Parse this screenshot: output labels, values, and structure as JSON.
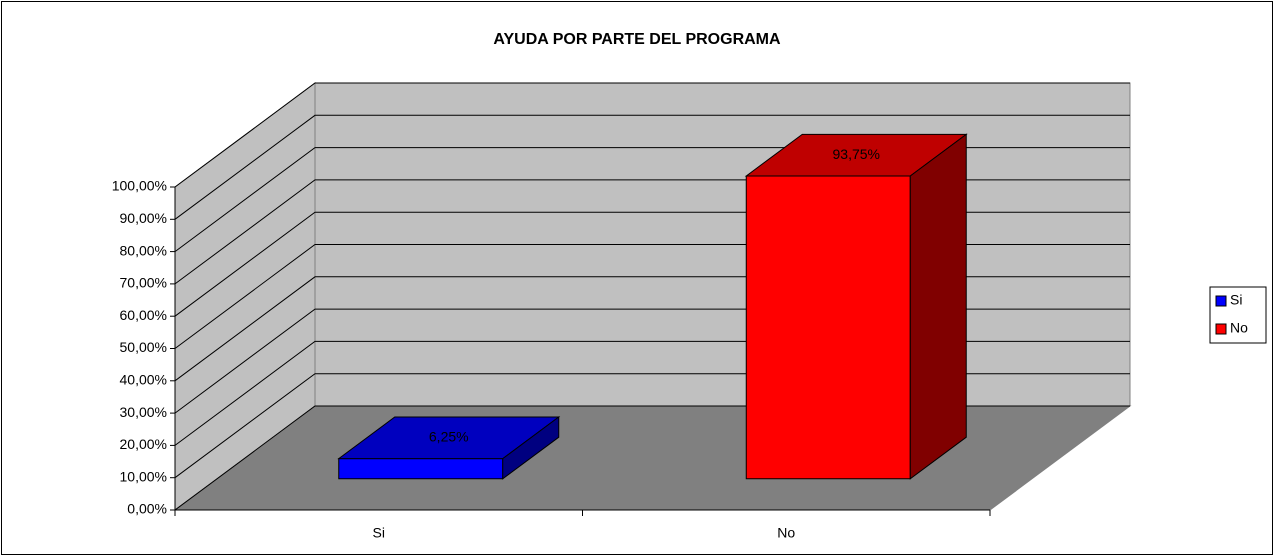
{
  "chart_data": {
    "type": "bar3d",
    "title": "AYUDA POR PARTE DEL PROGRAMA",
    "categories": [
      "Si",
      "No"
    ],
    "values": [
      6.25,
      93.75
    ],
    "value_labels": [
      "6,25%",
      "93,75%"
    ],
    "colors": [
      "#0000ff",
      "#ff0000"
    ],
    "ylim": [
      0,
      100
    ],
    "yticks": [
      {
        "value": 0,
        "label": "0,00%"
      },
      {
        "value": 10,
        "label": "10,00%"
      },
      {
        "value": 20,
        "label": "20,00%"
      },
      {
        "value": 30,
        "label": "30,00%"
      },
      {
        "value": 40,
        "label": "40,00%"
      },
      {
        "value": 50,
        "label": "50,00%"
      },
      {
        "value": 60,
        "label": "60,00%"
      },
      {
        "value": 70,
        "label": "70,00%"
      },
      {
        "value": 80,
        "label": "80,00%"
      },
      {
        "value": 90,
        "label": "90,00%"
      },
      {
        "value": 100,
        "label": "100,00%"
      }
    ],
    "grid": true,
    "legend": "right"
  }
}
